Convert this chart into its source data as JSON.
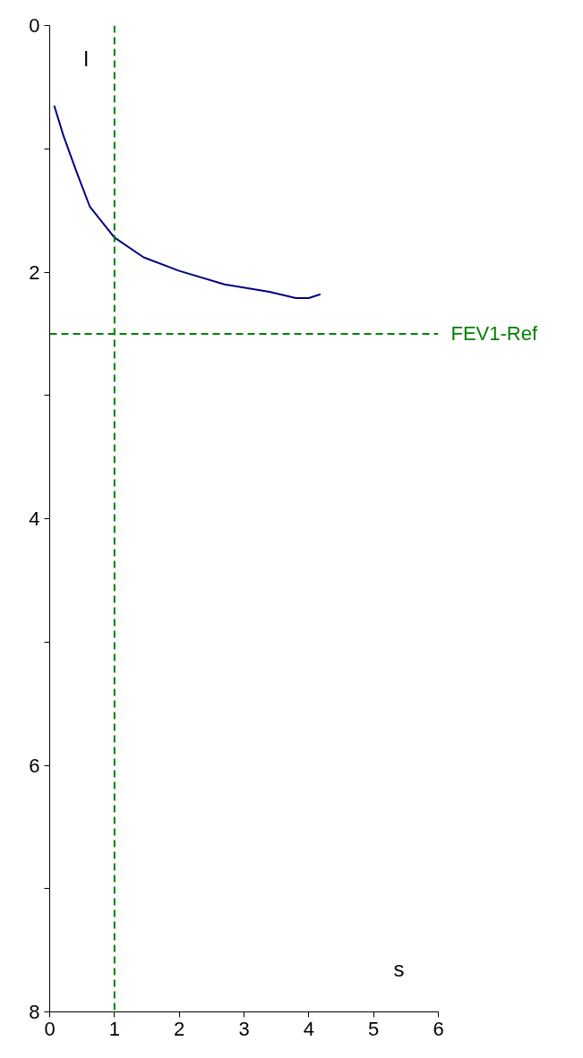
{
  "chart_data": {
    "type": "line",
    "xlabel": "s",
    "ylabel": "l",
    "x": [
      0.07,
      0.21,
      0.41,
      0.62,
      1.0,
      1.45,
      2.0,
      2.7,
      3.39,
      3.8,
      4.0,
      4.18
    ],
    "series": [
      {
        "color": "#000080",
        "values": [
          0.65,
          0.89,
          1.18,
          1.47,
          1.72,
          1.88,
          1.99,
          2.1,
          2.16,
          2.21,
          2.21,
          2.18
        ]
      }
    ],
    "xlim": [
      0,
      6
    ],
    "ylim": [
      8,
      0
    ],
    "xticks": [
      0,
      1,
      2,
      3,
      4,
      5,
      6
    ],
    "yticks": [
      0,
      {
        "value": 1,
        "label": null
      },
      2,
      {
        "value": 3,
        "label": null
      },
      4,
      {
        "value": 5,
        "label": null
      },
      6,
      {
        "value": 7,
        "label": null
      },
      8
    ],
    "ref_lines": [
      {
        "axis": "y",
        "value": 2.5,
        "label": "FEV1-Ref",
        "color": "#008000",
        "line_style": "dashed"
      },
      {
        "axis": "x",
        "value": 1,
        "label": null,
        "color": "#008000",
        "line_style": "dashed"
      }
    ],
    "grid": false,
    "marker": "none",
    "line_style": "solid"
  }
}
